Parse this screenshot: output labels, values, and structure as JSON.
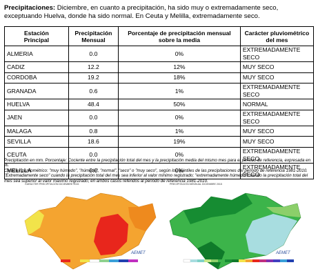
{
  "intro": {
    "label": "Precipitaciones:",
    "text": "Diciembre, en cuanto a precipitación, ha sido muy o extremadamente seco, exceptuando Huelva, donde ha sido normal. En Ceuta y Melilla, extremadamente seco."
  },
  "table": {
    "headers": [
      "Estación\nPrincipal",
      "Precipitación\nMensual",
      "Porcentaje de precipitación mensual\nsobre la media",
      "Carácter pluviométrico\ndel mes"
    ],
    "rows": [
      [
        "ALMERIA",
        "0.0",
        "0%",
        "EXTREMADAMENTE SECO"
      ],
      [
        "CADIZ",
        "12.2",
        "12%",
        "MUY SECO"
      ],
      [
        "CORDOBA",
        "19.2",
        "18%",
        "MUY SECO"
      ],
      [
        "GRANADA",
        "0.6",
        "1%",
        "EXTREMADAMENTE SECO"
      ],
      [
        "HUELVA",
        "48.4",
        "50%",
        "NORMAL"
      ],
      [
        "JAEN",
        "0.0",
        "0%",
        "EXTREMADAMENTE SECO"
      ],
      [
        "MALAGA",
        "0.8",
        "1%",
        "MUY SECO"
      ],
      [
        "SEVILLA",
        "18.6",
        "19%",
        "MUY SECO"
      ],
      [
        "CEUTA",
        "0.0",
        "0%",
        "EXTREMADAMENTE SECO"
      ],
      [
        "MELILLA",
        "0.0",
        "0%",
        "EXTREMADAMENTE SECO"
      ]
    ]
  },
  "notes": [
    "Precipitación en mm. Porcentaje: Cociente entre la precipitación total del mes y la precipitación media del mismo mes para el periodo de referencia, expresada en %.",
    "Carácter pluviométrico: \"muy húmedo\", \"húmedo\", \"normal\", \"seco\" o \"muy seco\", según los quintiles de las precipitaciones del periodo de referencia 1981-2010.",
    "\"Extremadamente seco\" cuando la precipitación total del mes sea inferior al valor mínimo registrado; \"extremadamente húmedo\" cuando la precipitación total del mes sea superior al valor máximo registrado, en ambos casos referidos al periodo de referencia 1981-2010."
  ],
  "maps": [
    {
      "title": "CARÁCTER PRECIPITACIÓN DICIEMBRE 2015",
      "logo": "AEMET"
    },
    {
      "title": "PRECIPITACIÓN MENSUAL DICIEMBRE 2015",
      "logo": "AEMET"
    }
  ]
}
